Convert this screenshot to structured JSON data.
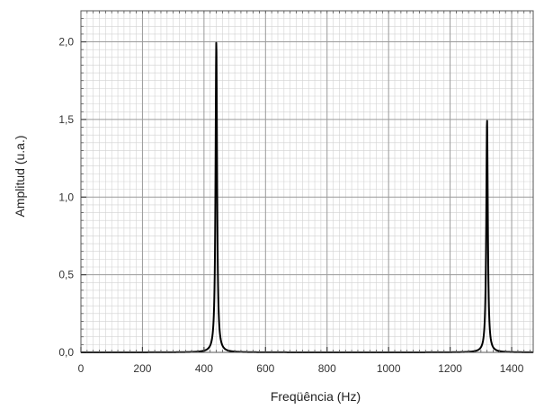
{
  "chart_data": {
    "type": "line",
    "title": "",
    "xlabel": "Freqüência (Hz)",
    "ylabel": "Amplitud (u.a.)",
    "xlim": [
      0,
      1470
    ],
    "ylim": [
      0,
      2.2
    ],
    "x_ticks": [
      0,
      200,
      400,
      600,
      800,
      1000,
      1200,
      1400
    ],
    "x_tick_labels": [
      "0",
      "200",
      "400",
      "600",
      "800",
      "1000",
      "1200",
      "1400"
    ],
    "y_ticks": [
      0,
      0.5,
      1.0,
      1.5,
      2.0
    ],
    "y_tick_labels": [
      "0,0",
      "0,5",
      "1,0",
      "1,5",
      "2,0"
    ],
    "grid": true,
    "minor_grid": true,
    "legend": "none",
    "line_color": "#000000",
    "series": [
      {
        "peaks": [
          {
            "x": 440,
            "y": 2.0
          },
          {
            "x": 1320,
            "y": 1.5
          }
        ],
        "baseline": 0.0
      }
    ]
  }
}
